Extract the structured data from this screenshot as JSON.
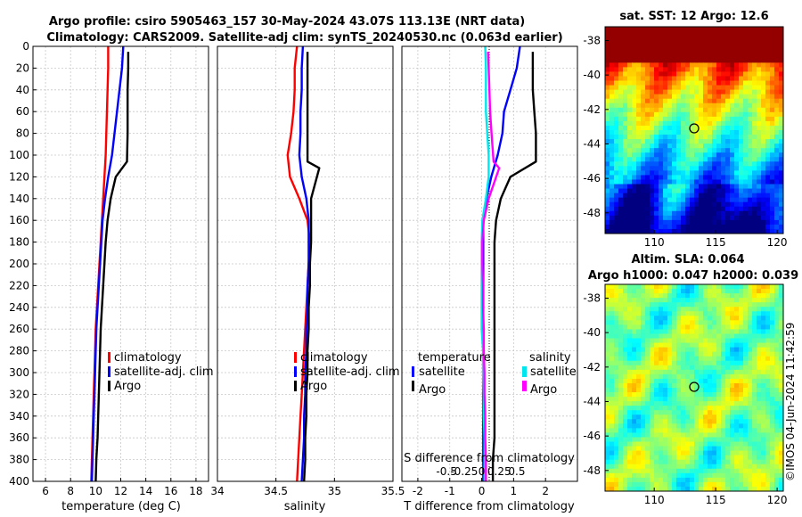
{
  "titles": {
    "line1": "Argo profile: csiro 5905463_157 30-May-2024 43.07S 113.13E (NRT data)",
    "line2": "Climatology: CARS2009. Satellite-adj clim: synTS_20240530.nc (0.063d earlier)"
  },
  "colors": {
    "climatology": "#ff0000",
    "satellite": "#0000ff",
    "argo": "#000000",
    "salinity_satellite": "#00e5ee",
    "salinity_argo": "#ff00ff",
    "grid": "#c8c8c8"
  },
  "depth_axis": {
    "ticks": [
      "0",
      "20",
      "40",
      "60",
      "80",
      "100",
      "120",
      "140",
      "160",
      "180",
      "200",
      "220",
      "240",
      "260",
      "280",
      "300",
      "320",
      "340",
      "360",
      "380",
      "400"
    ],
    "range": [
      0,
      400
    ]
  },
  "chart_data": [
    {
      "type": "line",
      "name": "temperature-panel",
      "xlabel": "temperature (deg C)",
      "xlim": [
        5,
        19
      ],
      "xticks": [
        6,
        8,
        10,
        12,
        14,
        16,
        18
      ],
      "xtick_labels": [
        "6",
        "8",
        "10",
        "12",
        "14",
        "16",
        "18"
      ],
      "legend": [
        "climatology",
        "satellite-adj. clim",
        "Argo"
      ],
      "legend_position": "lower-center",
      "series": [
        {
          "name": "climatology",
          "color_key": "climatology",
          "x": [
            11.0,
            11.0,
            10.95,
            10.9,
            10.85,
            10.8,
            10.7,
            10.6,
            10.5,
            10.4,
            10.3,
            10.2,
            10.1,
            10.0,
            9.95,
            9.9,
            9.85,
            9.8,
            9.75,
            9.7,
            9.65
          ],
          "y": [
            0,
            20,
            40,
            60,
            80,
            100,
            120,
            140,
            160,
            180,
            200,
            220,
            240,
            260,
            280,
            300,
            320,
            340,
            360,
            380,
            400
          ]
        },
        {
          "name": "satellite-adj. clim",
          "color_key": "satellite",
          "x": [
            12.2,
            12.1,
            11.9,
            11.7,
            11.5,
            11.3,
            11.0,
            10.75,
            10.55,
            10.45,
            10.35,
            10.25,
            10.15,
            10.05,
            10.0,
            9.95,
            9.9,
            9.85,
            9.8,
            9.75,
            9.7
          ],
          "y": [
            0,
            20,
            40,
            60,
            80,
            100,
            120,
            140,
            160,
            180,
            200,
            220,
            240,
            260,
            280,
            300,
            320,
            340,
            360,
            380,
            400
          ]
        },
        {
          "name": "Argo",
          "color_key": "argo",
          "x": [
            12.6,
            12.6,
            12.55,
            12.55,
            12.55,
            12.5,
            11.6,
            11.2,
            10.95,
            10.8,
            10.7,
            10.6,
            10.5,
            10.4,
            10.35,
            10.3,
            10.25,
            10.2,
            10.15,
            10.05,
            10.0
          ],
          "y": [
            5,
            20,
            40,
            60,
            80,
            106,
            120,
            140,
            160,
            180,
            200,
            220,
            240,
            260,
            280,
            300,
            320,
            340,
            360,
            380,
            400
          ]
        }
      ]
    },
    {
      "type": "line",
      "name": "salinity-panel",
      "xlabel": "salinity",
      "xlim": [
        34.0,
        35.5
      ],
      "xticks": [
        34.0,
        34.5,
        35.0,
        35.5
      ],
      "xtick_labels": [
        "34",
        "34.5",
        "35",
        "35.5"
      ],
      "legend": [
        "climatology",
        "satellite-adj. clim",
        "Argo"
      ],
      "legend_position": "lower-center",
      "series": [
        {
          "name": "climatology",
          "color_key": "climatology",
          "x": [
            34.68,
            34.66,
            34.66,
            34.65,
            34.63,
            34.6,
            34.62,
            34.7,
            34.77,
            34.79,
            34.78,
            34.77,
            34.76,
            34.75,
            34.74,
            34.73,
            34.72,
            34.71,
            34.7,
            34.69,
            34.68
          ],
          "y": [
            0,
            20,
            40,
            60,
            80,
            100,
            120,
            140,
            160,
            180,
            200,
            220,
            240,
            260,
            280,
            300,
            320,
            340,
            360,
            380,
            400
          ]
        },
        {
          "name": "satellite-adj. clim",
          "color_key": "satellite",
          "x": [
            34.73,
            34.72,
            34.72,
            34.71,
            34.71,
            34.7,
            34.72,
            34.76,
            34.78,
            34.78,
            34.78,
            34.77,
            34.77,
            34.76,
            34.76,
            34.75,
            34.75,
            34.74,
            34.74,
            34.73,
            34.72
          ],
          "y": [
            0,
            20,
            40,
            60,
            80,
            100,
            120,
            140,
            160,
            180,
            200,
            220,
            240,
            260,
            280,
            300,
            320,
            340,
            360,
            380,
            400
          ]
        },
        {
          "name": "Argo",
          "color_key": "argo",
          "x": [
            34.77,
            34.77,
            34.77,
            34.77,
            34.77,
            34.77,
            34.87,
            34.8,
            34.8,
            34.8,
            34.79,
            34.79,
            34.78,
            34.78,
            34.77,
            34.77,
            34.76,
            34.76,
            34.75,
            34.75,
            34.74
          ],
          "y": [
            5,
            20,
            40,
            60,
            80,
            106,
            112,
            140,
            160,
            180,
            200,
            220,
            240,
            260,
            280,
            300,
            320,
            340,
            360,
            380,
            400
          ]
        }
      ]
    },
    {
      "type": "line",
      "name": "difference-panel",
      "xlabel": "T difference from climatology",
      "xlim": [
        -2.5,
        3.0
      ],
      "xticks": [
        -2,
        -1,
        0,
        1,
        2
      ],
      "xtick_labels": [
        "-2",
        "-1",
        "0",
        "1",
        "2"
      ],
      "top_label": "S difference from climatology",
      "top_ticks": [
        -0.5,
        -0.25,
        0,
        0.25,
        0.5
      ],
      "top_tick_labels": [
        "-0.5",
        "-0.25",
        "0",
        "0.25",
        "0.5"
      ],
      "legend_temperature": {
        "header": "temperature",
        "items": [
          "satellite",
          "Argo"
        ]
      },
      "legend_salinity": {
        "header": "salinity",
        "items": [
          "satellite",
          "Argo"
        ]
      },
      "series": [
        {
          "name": "temperature satellite",
          "color_key": "satellite",
          "x": [
            1.2,
            1.1,
            0.9,
            0.7,
            0.65,
            0.5,
            0.3,
            0.15,
            0.05,
            0.05,
            0.05,
            0.05,
            0.05,
            0.05,
            0.05,
            0.05,
            0.05,
            0.05,
            0.05,
            0.05,
            0.05
          ],
          "y": [
            0,
            20,
            40,
            60,
            80,
            100,
            120,
            140,
            160,
            180,
            200,
            220,
            240,
            260,
            280,
            300,
            320,
            340,
            360,
            380,
            400
          ]
        },
        {
          "name": "temperature Argo",
          "color_key": "argo",
          "x": [
            1.6,
            1.6,
            1.6,
            1.65,
            1.7,
            1.7,
            0.9,
            0.6,
            0.45,
            0.4,
            0.4,
            0.4,
            0.4,
            0.4,
            0.4,
            0.4,
            0.4,
            0.4,
            0.4,
            0.35,
            0.35
          ],
          "y": [
            5,
            20,
            40,
            60,
            80,
            106,
            120,
            140,
            160,
            180,
            200,
            220,
            240,
            260,
            280,
            300,
            320,
            340,
            360,
            380,
            400
          ]
        },
        {
          "name": "salinity satellite",
          "color_key": "salinity_satellite",
          "x": [
            0.05,
            0.06,
            0.06,
            0.06,
            0.08,
            0.1,
            0.1,
            0.06,
            0.01,
            0.0,
            0.0,
            0.0,
            0.0,
            0.0,
            0.02,
            0.02,
            0.03,
            0.03,
            0.04,
            0.04,
            0.04
          ],
          "y": [
            0,
            20,
            40,
            60,
            80,
            100,
            120,
            140,
            160,
            180,
            200,
            220,
            240,
            260,
            280,
            300,
            320,
            340,
            360,
            380,
            400
          ]
        },
        {
          "name": "salinity Argo",
          "color_key": "salinity_argo",
          "x": [
            0.09,
            0.1,
            0.11,
            0.12,
            0.14,
            0.17,
            0.25,
            0.1,
            0.03,
            0.01,
            0.01,
            0.02,
            0.02,
            0.03,
            0.03,
            0.04,
            0.04,
            0.05,
            0.05,
            0.06,
            0.06
          ],
          "y": [
            5,
            20,
            40,
            60,
            80,
            106,
            112,
            140,
            160,
            180,
            200,
            220,
            240,
            260,
            280,
            300,
            320,
            340,
            360,
            380,
            400
          ]
        }
      ]
    },
    {
      "type": "heatmap",
      "name": "sst-map",
      "title": "sat. SST: 12 Argo: 12.6",
      "xlim": [
        106,
        120.5
      ],
      "ylim": [
        -49.2,
        -37.2
      ],
      "xticks": [
        110,
        115,
        120
      ],
      "xtick_labels": [
        "110",
        "115",
        "120"
      ],
      "yticks": [
        -38,
        -40,
        -42,
        -44,
        -46,
        -48
      ],
      "ytick_labels": [
        "-38",
        "-40",
        "-42",
        "-44",
        "-46",
        "-48"
      ],
      "marker": {
        "lon": 113.13,
        "lat": -43.07
      }
    },
    {
      "type": "heatmap",
      "name": "sla-map",
      "title": "Altim. SLA: 0.064",
      "subtitle": "Argo h1000: 0.047 h2000: 0.039",
      "xlim": [
        106,
        120.5
      ],
      "ylim": [
        -49.2,
        -37.2
      ],
      "xticks": [
        110,
        115,
        120
      ],
      "xtick_labels": [
        "110",
        "115",
        "120"
      ],
      "yticks": [
        -38,
        -40,
        -42,
        -44,
        -46,
        -48
      ],
      "ytick_labels": [
        "-38",
        "-40",
        "-42",
        "-44",
        "-46",
        "-48"
      ],
      "marker": {
        "lon": 113.13,
        "lat": -43.07
      }
    }
  ],
  "credit": "©IMOS 04-Jun-2024 11:42:59"
}
